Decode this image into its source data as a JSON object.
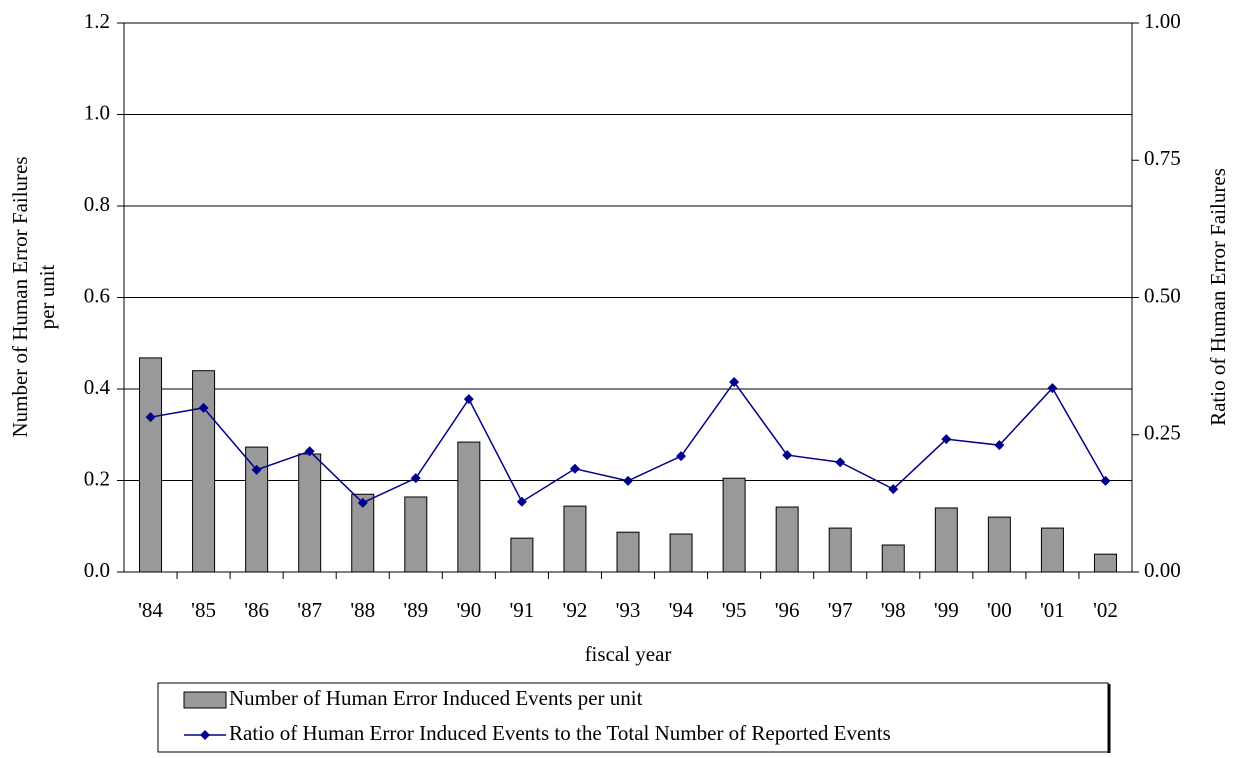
{
  "chart_data": {
    "type": "bar-line",
    "xlabel": "fiscal year",
    "ylabel": [
      "Number of Human Error Failures",
      "per unit"
    ],
    "y2label": "Ratio of Human Error Failures",
    "categories": [
      "'84",
      "'85",
      "'86",
      "'87",
      "'88",
      "'89",
      "'90",
      "'91",
      "'92",
      "'93",
      "'94",
      "'95",
      "'96",
      "'97",
      "'98",
      "'99",
      "'00",
      "'01",
      "'02"
    ],
    "series": [
      {
        "name": "Number of Human Error Induced Events per unit",
        "type": "bar",
        "color": "#999999",
        "values": [
          0.468,
          0.44,
          0.273,
          0.258,
          0.17,
          0.164,
          0.284,
          0.074,
          0.144,
          0.087,
          0.083,
          0.205,
          0.142,
          0.096,
          0.059,
          0.14,
          0.12,
          0.096,
          0.039
        ]
      },
      {
        "name": "Ratio of Human Error Induced Events to the Total Number of Reported Events",
        "type": "line",
        "axis": "y2",
        "color": "#00008b",
        "values": [
          0.282,
          0.299,
          0.186,
          0.22,
          0.126,
          0.171,
          0.315,
          0.128,
          0.188,
          0.166,
          0.211,
          0.346,
          0.213,
          0.2,
          0.151,
          0.242,
          0.231,
          0.335,
          0.166
        ]
      }
    ],
    "ylim": [
      0,
      1.2
    ],
    "yticks": [
      {
        "value": 0,
        "label": "0.0"
      },
      0.2,
      0.4,
      0.6,
      0.8,
      {
        "value": 1,
        "label": "1.0"
      },
      1.2
    ],
    "y2lim": [
      0,
      1
    ],
    "y2ticks": [
      {
        "value": 0,
        "label": "0.00"
      },
      0.25,
      {
        "value": 0.5,
        "label": "0.50"
      },
      0.75,
      {
        "value": 1,
        "label": "1.00"
      }
    ],
    "grid": true
  }
}
